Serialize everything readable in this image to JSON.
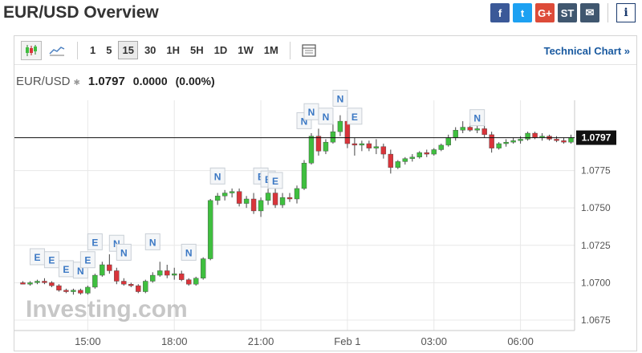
{
  "header": {
    "title": "EUR/USD Overview",
    "share": [
      {
        "icon": "facebook-icon",
        "glyph": "f",
        "color": "#3b5998"
      },
      {
        "icon": "twitter-icon",
        "glyph": "t",
        "color": "#1da1f2"
      },
      {
        "icon": "google-plus-icon",
        "glyph": "G+",
        "color": "#dd4b39"
      },
      {
        "icon": "stocktwits-icon",
        "glyph": "ST",
        "color": "#40576f"
      },
      {
        "icon": "email-icon",
        "glyph": "✉",
        "color": "#40576f"
      }
    ],
    "info_glyph": "i"
  },
  "toolbar": {
    "timeframes": [
      "1",
      "5",
      "15",
      "30",
      "1H",
      "5H",
      "1D",
      "1W",
      "1M"
    ],
    "active_timeframe": "15",
    "technical_chart_label": "Technical Chart »"
  },
  "quote": {
    "symbol": "EUR/USD",
    "star": "✱",
    "price": "1.0797",
    "change": "0.0000",
    "change_pct": "(0.00%)"
  },
  "chart_data": {
    "type": "candlestick",
    "watermark": "Investing.com",
    "current_price": 1.0797,
    "current_price_label": "1.0797",
    "ylim": [
      1.0668,
      1.0822
    ],
    "y_ticks": [
      "1.0775",
      "1.0750",
      "1.0725",
      "1.0700",
      "1.0675"
    ],
    "x_ticks": [
      "15:00",
      "18:00",
      "21:00",
      "Feb 1",
      "03:00",
      "06:00"
    ],
    "grid": true,
    "colors": {
      "up": "#3fbf3f",
      "down": "#d9343a",
      "grid": "#e8e8e8",
      "axis": "#555555"
    },
    "candles": [
      [
        1.07,
        1.0701,
        1.0699,
        1.0699
      ],
      [
        1.0699,
        1.0701,
        1.0698,
        1.07
      ],
      [
        1.07,
        1.0702,
        1.0699,
        1.0701
      ],
      [
        1.0701,
        1.0703,
        1.0699,
        1.07
      ],
      [
        1.07,
        1.0701,
        1.0697,
        1.0698
      ],
      [
        1.0698,
        1.0699,
        1.0694,
        1.0695
      ],
      [
        1.0695,
        1.0696,
        1.0693,
        1.0694
      ],
      [
        1.0694,
        1.0696,
        1.0692,
        1.0695
      ],
      [
        1.0695,
        1.0696,
        1.0692,
        1.0693
      ],
      [
        1.0693,
        1.0698,
        1.0692,
        1.0697
      ],
      [
        1.0697,
        1.0706,
        1.0696,
        1.0705
      ],
      [
        1.0705,
        1.0714,
        1.0704,
        1.0712
      ],
      [
        1.0712,
        1.0719,
        1.0706,
        1.0708
      ],
      [
        1.0708,
        1.071,
        1.0699,
        1.0701
      ],
      [
        1.0701,
        1.0703,
        1.0698,
        1.0699
      ],
      [
        1.0699,
        1.07,
        1.0697,
        1.0698
      ],
      [
        1.0698,
        1.0699,
        1.0693,
        1.0694
      ],
      [
        1.0694,
        1.0702,
        1.0693,
        1.0701
      ],
      [
        1.0701,
        1.0707,
        1.07,
        1.0705
      ],
      [
        1.0705,
        1.0714,
        1.0704,
        1.0708
      ],
      [
        1.0708,
        1.0712,
        1.0703,
        1.0705
      ],
      [
        1.0705,
        1.071,
        1.0702,
        1.0706
      ],
      [
        1.0706,
        1.0708,
        1.0701,
        1.0702
      ],
      [
        1.0702,
        1.0703,
        1.0698,
        1.0699
      ],
      [
        1.0699,
        1.0704,
        1.0698,
        1.0703
      ],
      [
        1.0703,
        1.0717,
        1.0702,
        1.0716
      ],
      [
        1.0716,
        1.0756,
        1.0715,
        1.0755
      ],
      [
        1.0755,
        1.076,
        1.0752,
        1.0758
      ],
      [
        1.0758,
        1.0762,
        1.0755,
        1.076
      ],
      [
        1.076,
        1.0763,
        1.0757,
        1.0761
      ],
      [
        1.0761,
        1.0763,
        1.0751,
        1.0753
      ],
      [
        1.0753,
        1.0758,
        1.075,
        1.0756
      ],
      [
        1.0756,
        1.076,
        1.0746,
        1.0748
      ],
      [
        1.0748,
        1.0757,
        1.0744,
        1.0755
      ],
      [
        1.0755,
        1.0766,
        1.0752,
        1.076
      ],
      [
        1.076,
        1.0768,
        1.075,
        1.0752
      ],
      [
        1.0752,
        1.076,
        1.075,
        1.0757
      ],
      [
        1.0757,
        1.076,
        1.0754,
        1.0756
      ],
      [
        1.0756,
        1.0765,
        1.0753,
        1.0763
      ],
      [
        1.0763,
        1.0782,
        1.0762,
        1.078
      ],
      [
        1.078,
        1.08,
        1.0779,
        1.0798
      ],
      [
        1.0798,
        1.0803,
        1.0785,
        1.0788
      ],
      [
        1.0788,
        1.0796,
        1.0786,
        1.0794
      ],
      [
        1.0794,
        1.0808,
        1.0793,
        1.0801
      ],
      [
        1.0801,
        1.0812,
        1.0798,
        1.0808
      ],
      [
        1.0808,
        1.0815,
        1.079,
        1.0793
      ],
      [
        1.0793,
        1.0797,
        1.0785,
        1.0792
      ],
      [
        1.0792,
        1.0795,
        1.0788,
        1.0793
      ],
      [
        1.0793,
        1.0795,
        1.0788,
        1.079
      ],
      [
        1.079,
        1.0796,
        1.0786,
        1.0791
      ],
      [
        1.0791,
        1.0793,
        1.0783,
        1.0786
      ],
      [
        1.0786,
        1.0789,
        1.0773,
        1.0777
      ],
      [
        1.0777,
        1.0782,
        1.0776,
        1.0781
      ],
      [
        1.0781,
        1.0784,
        1.0779,
        1.0783
      ],
      [
        1.0783,
        1.0786,
        1.0781,
        1.0784
      ],
      [
        1.0784,
        1.0788,
        1.0783,
        1.0787
      ],
      [
        1.0787,
        1.0789,
        1.0784,
        1.0786
      ],
      [
        1.0786,
        1.079,
        1.0785,
        1.0789
      ],
      [
        1.0789,
        1.0793,
        1.0788,
        1.0792
      ],
      [
        1.0792,
        1.0799,
        1.0791,
        1.0797
      ],
      [
        1.0797,
        1.0804,
        1.0795,
        1.0802
      ],
      [
        1.0802,
        1.0808,
        1.08,
        1.0804
      ],
      [
        1.0804,
        1.0807,
        1.0801,
        1.0802
      ],
      [
        1.0802,
        1.0806,
        1.08,
        1.0803
      ],
      [
        1.0803,
        1.0805,
        1.0797,
        1.0799
      ],
      [
        1.0799,
        1.0801,
        1.0787,
        1.079
      ],
      [
        1.079,
        1.0794,
        1.0789,
        1.0793
      ],
      [
        1.0793,
        1.0796,
        1.0791,
        1.0794
      ],
      [
        1.0794,
        1.0797,
        1.0793,
        1.0795
      ],
      [
        1.0795,
        1.0798,
        1.0793,
        1.0796
      ],
      [
        1.0796,
        1.0801,
        1.0795,
        1.08
      ],
      [
        1.08,
        1.0801,
        1.0796,
        1.0797
      ],
      [
        1.0797,
        1.08,
        1.0795,
        1.0798
      ],
      [
        1.0798,
        1.0799,
        1.0795,
        1.0796
      ],
      [
        1.0796,
        1.0798,
        1.0794,
        1.0795
      ],
      [
        1.0795,
        1.0797,
        1.0793,
        1.0794
      ],
      [
        1.0794,
        1.0799,
        1.0793,
        1.0797
      ]
    ],
    "markers": [
      {
        "i": 2,
        "label": "E",
        "level": 1.0712
      },
      {
        "i": 4,
        "label": "E",
        "level": 1.071
      },
      {
        "i": 6,
        "label": "E",
        "level": 1.0704
      },
      {
        "i": 8,
        "label": "N",
        "level": 1.0703
      },
      {
        "i": 9,
        "label": "E",
        "level": 1.071
      },
      {
        "i": 10,
        "label": "E",
        "level": 1.0722
      },
      {
        "i": 13,
        "label": "N",
        "level": 1.0721
      },
      {
        "i": 14,
        "label": "N",
        "level": 1.0715
      },
      {
        "i": 18,
        "label": "N",
        "level": 1.0722
      },
      {
        "i": 23,
        "label": "N",
        "level": 1.0715
      },
      {
        "i": 27,
        "label": "N",
        "level": 1.0766
      },
      {
        "i": 33,
        "label": "E",
        "level": 1.0766
      },
      {
        "i": 34,
        "label": "E",
        "level": 1.0764
      },
      {
        "i": 35,
        "label": "E",
        "level": 1.0763
      },
      {
        "i": 39,
        "label": "N",
        "level": 1.0803
      },
      {
        "i": 40,
        "label": "N",
        "level": 1.0809
      },
      {
        "i": 42,
        "label": "N",
        "level": 1.0806
      },
      {
        "i": 44,
        "label": "N",
        "level": 1.0818
      },
      {
        "i": 46,
        "label": "E",
        "level": 1.0806
      },
      {
        "i": 63,
        "label": "N",
        "level": 1.0805
      }
    ]
  }
}
